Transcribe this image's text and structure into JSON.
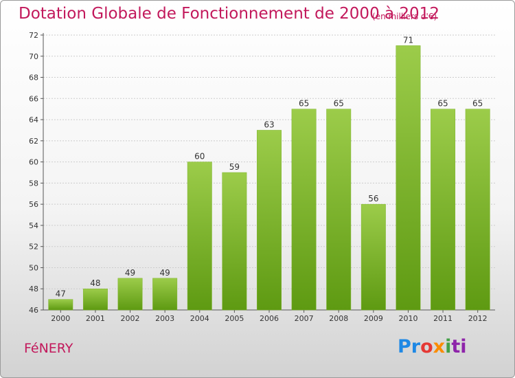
{
  "colors": {
    "title": "#c2185b",
    "bar_top": "#9ccc4a",
    "bar_bottom": "#5e9a12",
    "grid": "#cccccc"
  },
  "logo": [
    "Pr",
    "o",
    "x",
    "i",
    "ti"
  ],
  "chart_data": {
    "type": "bar",
    "title": "Dotation Globale de Fonctionnement de 2000 à 2012",
    "subtitle": "(en milliers d'€)",
    "commune": "FéNERY",
    "categories": [
      "2000",
      "2001",
      "2002",
      "2003",
      "2004",
      "2005",
      "2006",
      "2007",
      "2008",
      "2009",
      "2010",
      "2011",
      "2012"
    ],
    "values": [
      47,
      48,
      49,
      49,
      60,
      59,
      63,
      65,
      65,
      56,
      71,
      65,
      65
    ],
    "ylim": [
      46,
      72
    ],
    "yticks": [
      46,
      48,
      50,
      52,
      54,
      56,
      58,
      60,
      62,
      64,
      66,
      68,
      70,
      72
    ],
    "grid": true,
    "legend": "none"
  }
}
